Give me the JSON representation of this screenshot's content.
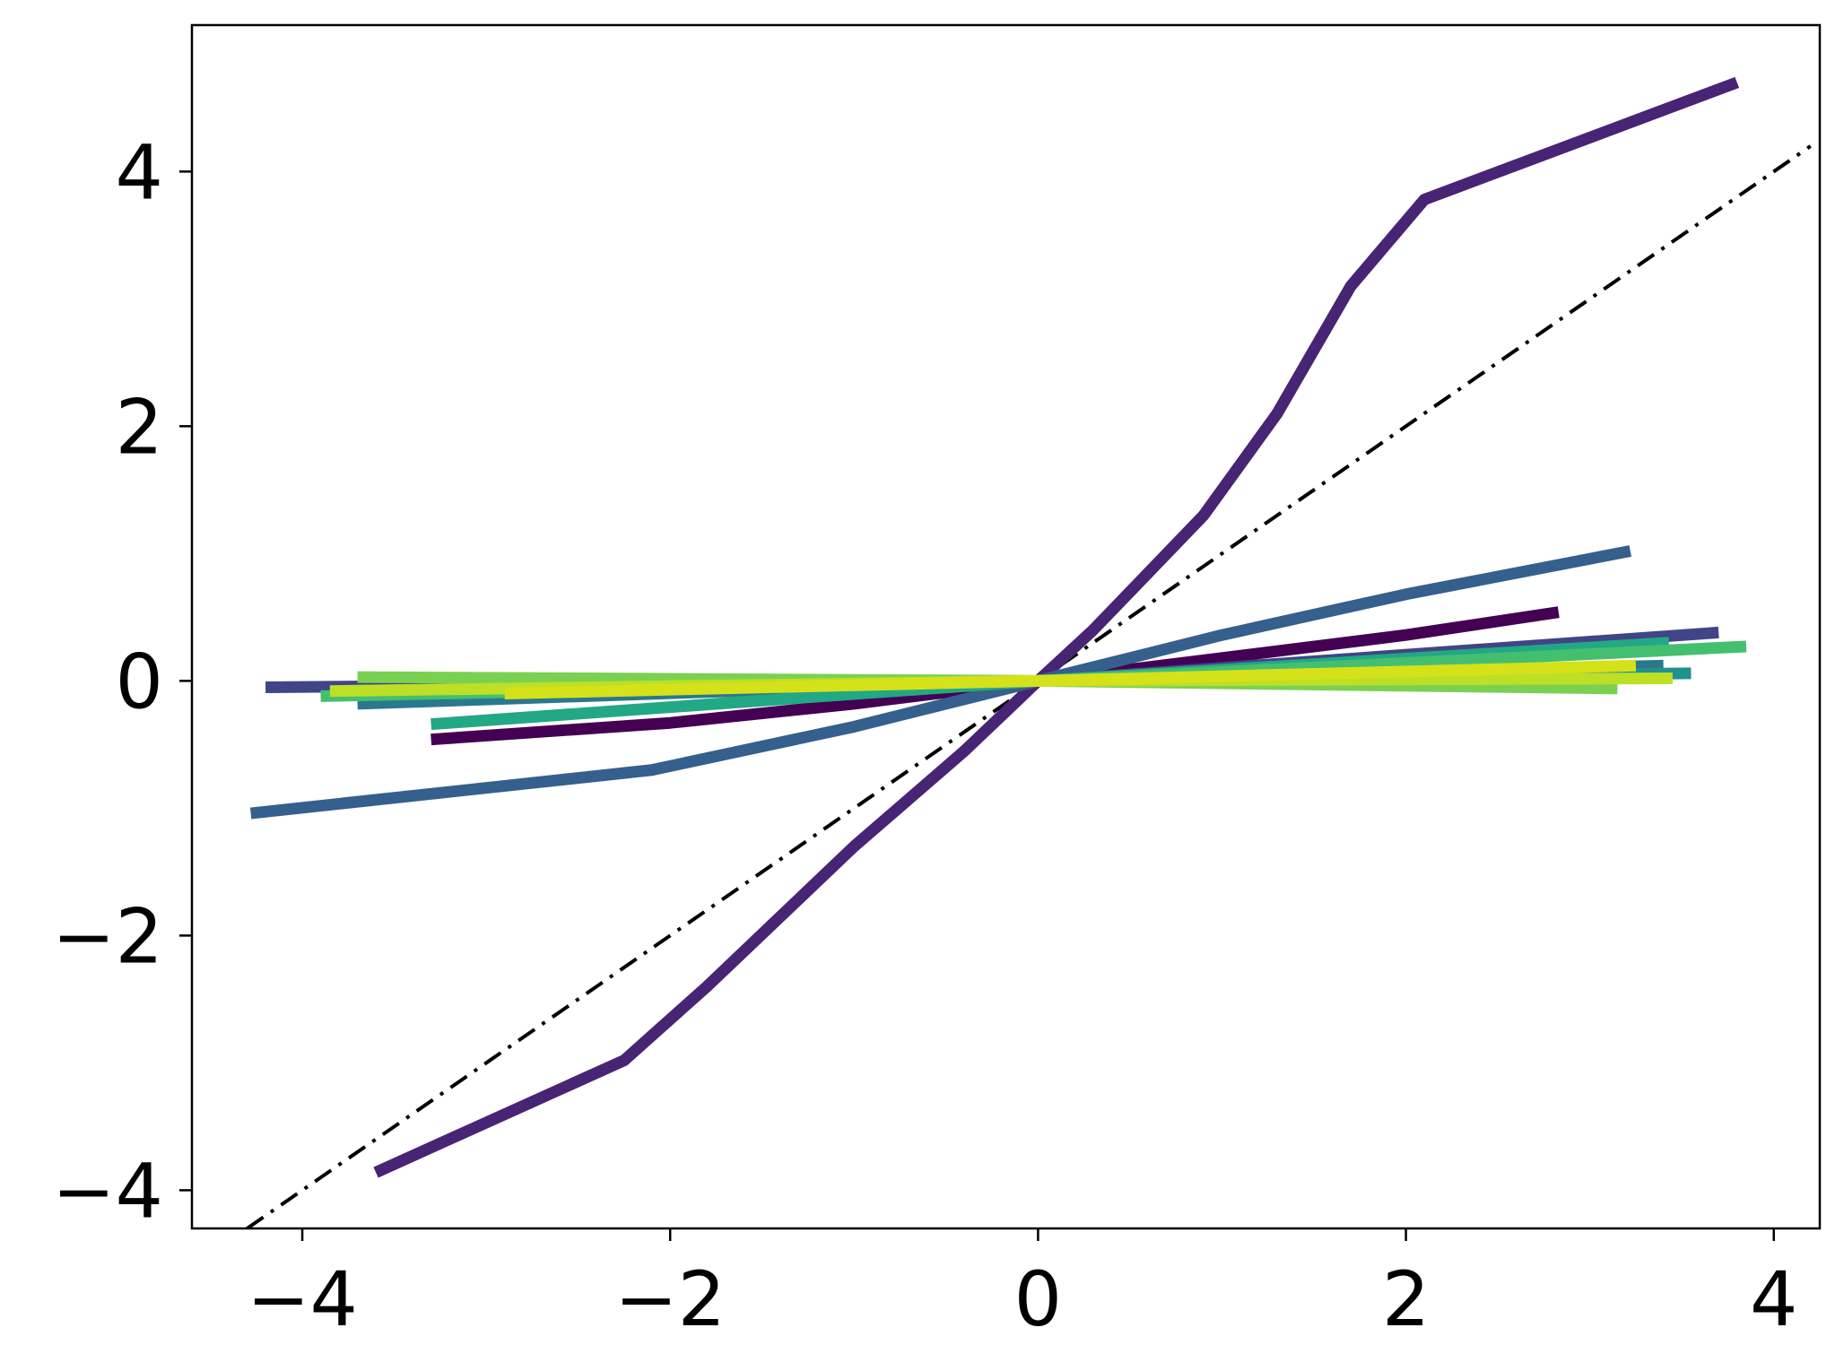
{
  "chart_data": {
    "type": "line",
    "title": "",
    "xlabel": "",
    "ylabel": "",
    "xlim": [
      -4.6,
      4.25
    ],
    "ylim": [
      -4.3,
      5.15
    ],
    "grid": false,
    "legend": "none",
    "x_ticks": [
      {
        "value": -4,
        "label": "−4"
      },
      {
        "value": -2,
        "label": "−2"
      },
      {
        "value": 0,
        "label": "0"
      },
      {
        "value": 2,
        "label": "2"
      },
      {
        "value": 4,
        "label": "4"
      }
    ],
    "y_ticks": [
      {
        "value": -4,
        "label": "−4"
      },
      {
        "value": -2,
        "label": "−2"
      },
      {
        "value": 0,
        "label": "0"
      },
      {
        "value": 2,
        "label": "2"
      },
      {
        "value": 4,
        "label": "4"
      }
    ],
    "reference_line": {
      "style": "dash-dot",
      "color": "#000000",
      "x": [
        -4.3,
        4.2
      ],
      "y": [
        -4.3,
        4.2
      ]
    },
    "series": [
      {
        "color": "#440154",
        "x": [
          -3.3,
          -2.0,
          -1.0,
          0.0,
          1.0,
          2.0,
          2.83
        ],
        "y": [
          -0.46,
          -0.33,
          -0.18,
          0.0,
          0.18,
          0.36,
          0.54
        ]
      },
      {
        "color": "#482475",
        "x": [
          -3.6,
          -2.25,
          -1.8,
          -1.0,
          -0.4,
          0.0,
          0.3,
          0.9,
          1.3,
          1.7,
          2.1,
          3.8
        ],
        "y": [
          -3.86,
          -2.98,
          -2.4,
          -1.3,
          -0.55,
          0.0,
          0.4,
          1.3,
          2.1,
          3.1,
          3.78,
          4.7
        ]
      },
      {
        "color": "#414487",
        "x": [
          -4.2,
          0.0,
          3.7
        ],
        "y": [
          -0.05,
          0.0,
          0.38
        ]
      },
      {
        "color": "#355f8d",
        "x": [
          -4.28,
          -2.1,
          -1.0,
          0.0,
          1.0,
          2.0,
          3.22
        ],
        "y": [
          -1.04,
          -0.7,
          -0.36,
          0.0,
          0.36,
          0.68,
          1.02
        ]
      },
      {
        "color": "#2a788e",
        "x": [
          -3.7,
          0.0,
          3.4
        ],
        "y": [
          -0.18,
          0.0,
          0.12
        ]
      },
      {
        "color": "#21918c",
        "x": [
          -3.8,
          0.0,
          3.55
        ],
        "y": [
          -0.08,
          0.0,
          0.06
        ]
      },
      {
        "color": "#22a884",
        "x": [
          -3.3,
          0.0,
          3.43
        ],
        "y": [
          -0.34,
          0.0,
          0.3
        ]
      },
      {
        "color": "#44bf70",
        "x": [
          -3.9,
          0.0,
          3.85
        ],
        "y": [
          -0.12,
          0.0,
          0.27
        ]
      },
      {
        "color": "#7ad151",
        "x": [
          -3.7,
          0.0,
          3.15
        ],
        "y": [
          0.03,
          0.0,
          -0.06
        ]
      },
      {
        "color": "#bddf26",
        "x": [
          -3.85,
          0.0,
          3.45
        ],
        "y": [
          -0.08,
          0.0,
          0.02
        ]
      },
      {
        "color": "#d5e21a",
        "x": [
          -2.9,
          0.0,
          3.25
        ],
        "y": [
          -0.1,
          0.0,
          0.12
        ]
      }
    ]
  }
}
